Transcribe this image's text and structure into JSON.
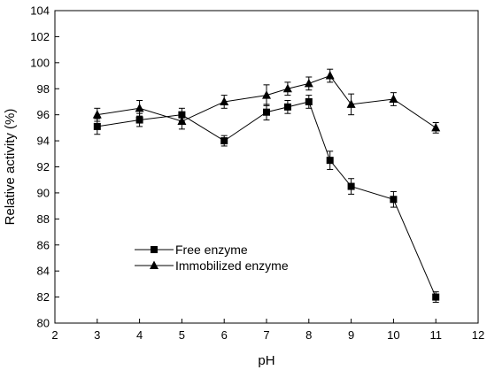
{
  "chart_data": {
    "type": "line",
    "title": "",
    "xlabel": "pH",
    "ylabel": "Relative activity (%)",
    "xlim": [
      2,
      12
    ],
    "ylim": [
      80,
      104
    ],
    "x_ticks": [
      2,
      3,
      4,
      5,
      6,
      7,
      8,
      9,
      10,
      11,
      12
    ],
    "y_ticks": [
      80,
      82,
      84,
      86,
      88,
      90,
      92,
      94,
      96,
      98,
      100,
      102,
      104
    ],
    "grid": false,
    "legend_position": "lower-left",
    "series": [
      {
        "name": "Free enzyme",
        "marker": "square",
        "x": [
          3,
          4,
          5,
          6,
          7,
          7.5,
          8,
          8.5,
          9,
          10,
          11
        ],
        "y": [
          95.1,
          95.6,
          96.0,
          94.0,
          96.2,
          96.6,
          97.0,
          92.5,
          90.5,
          89.5,
          82.0
        ],
        "err": [
          0.6,
          0.5,
          0.5,
          0.4,
          0.6,
          0.5,
          0.5,
          0.7,
          0.6,
          0.6,
          0.4
        ]
      },
      {
        "name": "Immobilized enzyme",
        "marker": "triangle",
        "x": [
          3,
          4,
          5,
          6,
          7,
          7.5,
          8,
          8.5,
          9,
          10,
          11
        ],
        "y": [
          96.0,
          96.5,
          95.5,
          97.0,
          97.5,
          98.0,
          98.4,
          99.0,
          96.8,
          97.2,
          95.0
        ],
        "err": [
          0.5,
          0.6,
          0.6,
          0.5,
          0.8,
          0.5,
          0.5,
          0.5,
          0.8,
          0.5,
          0.4
        ]
      }
    ]
  }
}
